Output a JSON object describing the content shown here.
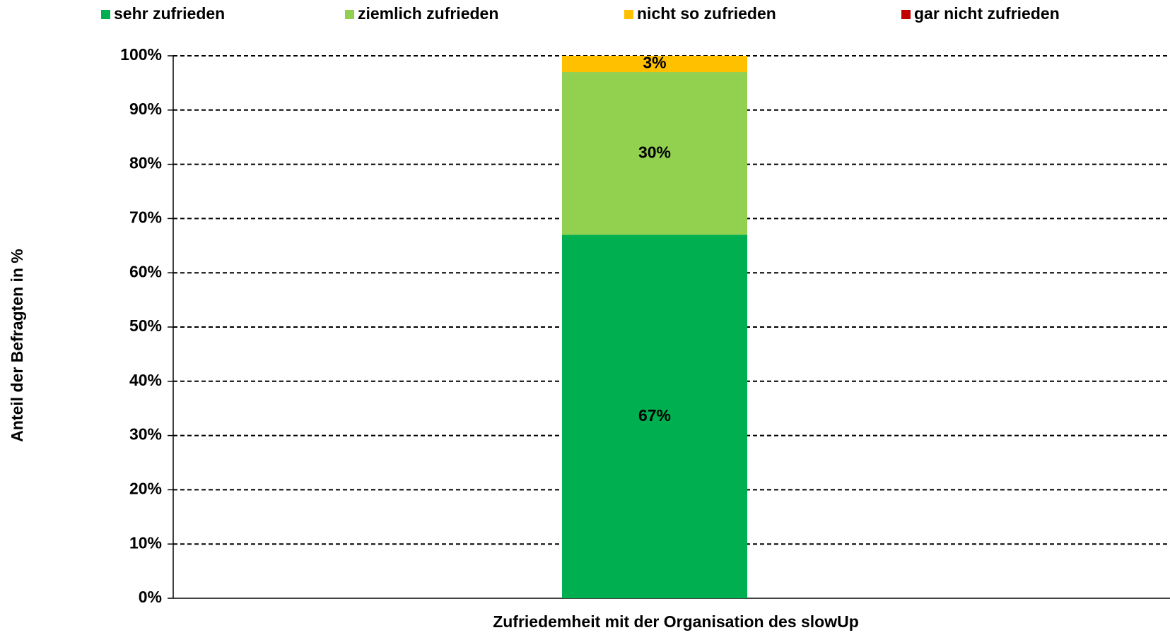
{
  "chart_data": {
    "type": "stacked_bar",
    "x_label": "Zufriedemheit mit der Organisation des slowUp",
    "y_label": "Anteil der Befragten in %",
    "categories": [
      null
    ],
    "series": [
      {
        "name": "sehr zufrieden",
        "color": "#00b050",
        "values": [
          67
        ],
        "value_labels": [
          "67%"
        ]
      },
      {
        "name": "ziemlich zufrieden",
        "color": "#92d050",
        "values": [
          30
        ],
        "value_labels": [
          "30%"
        ]
      },
      {
        "name": "nicht so zufrieden",
        "color": "#ffc000",
        "values": [
          3
        ],
        "value_labels": [
          "3%"
        ]
      },
      {
        "name": "gar nicht zufrieden",
        "color": "#c00000",
        "values": [
          0
        ]
      }
    ],
    "ylim": [
      0,
      100
    ],
    "yticks": [
      {
        "value": 0,
        "label": "0%"
      },
      {
        "value": 10,
        "label": "10%"
      },
      {
        "value": 20,
        "label": "20%"
      },
      {
        "value": 30,
        "label": "30%"
      },
      {
        "value": 40,
        "label": "40%"
      },
      {
        "value": 50,
        "label": "50%"
      },
      {
        "value": 60,
        "label": "60%"
      },
      {
        "value": 70,
        "label": "70%"
      },
      {
        "value": 80,
        "label": "80%"
      },
      {
        "value": 90,
        "label": "90%"
      },
      {
        "value": 100,
        "label": "100%"
      }
    ],
    "grid": true,
    "legend": "top"
  }
}
